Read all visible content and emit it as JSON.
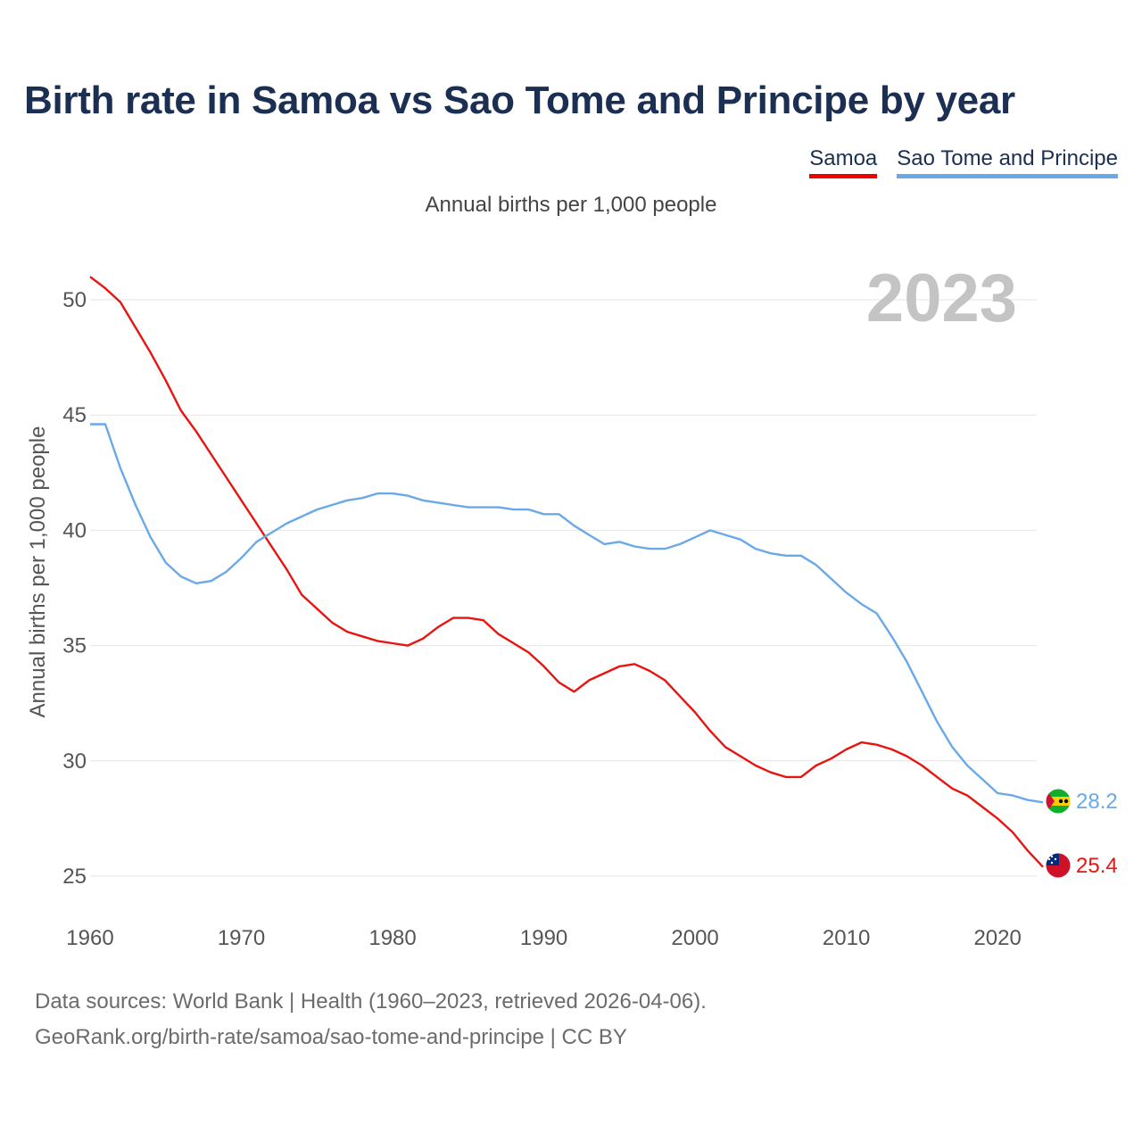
{
  "title": "Birth rate in Samoa vs Sao Tome and Principe by year",
  "legend": [
    {
      "label": "Samoa",
      "color": "#e8140f"
    },
    {
      "label": "Sao Tome and Principe",
      "color": "#6aa9e8"
    }
  ],
  "subtitle": "Annual births per 1,000 people",
  "footer": {
    "line1": "Data sources: World Bank | Health (1960–2023, retrieved 2026-04-06).",
    "line2": "GeoRank.org/birth-rate/samoa/sao-tome-and-principe | CC BY"
  },
  "chart_data": {
    "type": "line",
    "title": "Birth rate in Samoa vs Sao Tome and Principe by year",
    "ylabel": "Annual births per 1,000 people",
    "xlabel": "",
    "xlim": [
      1960,
      2023
    ],
    "ylim": [
      23.5,
      52
    ],
    "x_ticks": [
      1960,
      1970,
      1980,
      1990,
      2000,
      2010,
      2020
    ],
    "y_ticks": [
      25,
      30,
      35,
      40,
      45,
      50
    ],
    "grid": true,
    "year_watermark": "2023",
    "x": [
      1960,
      1961,
      1962,
      1963,
      1964,
      1965,
      1966,
      1967,
      1968,
      1969,
      1970,
      1971,
      1972,
      1973,
      1974,
      1975,
      1976,
      1977,
      1978,
      1979,
      1980,
      1981,
      1982,
      1983,
      1984,
      1985,
      1986,
      1987,
      1988,
      1989,
      1990,
      1991,
      1992,
      1993,
      1994,
      1995,
      1996,
      1997,
      1998,
      1999,
      2000,
      2001,
      2002,
      2003,
      2004,
      2005,
      2006,
      2007,
      2008,
      2009,
      2010,
      2011,
      2012,
      2013,
      2014,
      2015,
      2016,
      2017,
      2018,
      2019,
      2020,
      2021,
      2022,
      2023
    ],
    "series": [
      {
        "name": "Samoa",
        "color": "#e8140f",
        "end_label": "25.4",
        "values": [
          51.0,
          50.5,
          49.9,
          48.8,
          47.7,
          46.5,
          45.2,
          44.3,
          43.3,
          42.3,
          41.3,
          40.3,
          39.3,
          38.3,
          37.2,
          36.6,
          36.0,
          35.6,
          35.4,
          35.2,
          35.1,
          35.0,
          35.3,
          35.8,
          36.2,
          36.2,
          36.1,
          35.5,
          35.1,
          34.7,
          34.1,
          33.4,
          33.0,
          33.5,
          33.8,
          34.1,
          34.2,
          33.9,
          33.5,
          32.8,
          32.1,
          31.3,
          30.6,
          30.2,
          29.8,
          29.5,
          29.3,
          29.3,
          29.8,
          30.1,
          30.5,
          30.8,
          30.7,
          30.5,
          30.2,
          29.8,
          29.3,
          28.8,
          28.5,
          28.0,
          27.5,
          26.9,
          26.1,
          25.4
        ]
      },
      {
        "name": "Sao Tome and Principe",
        "color": "#6aa9e8",
        "end_label": "28.2",
        "values": [
          44.6,
          44.6,
          42.7,
          41.1,
          39.7,
          38.6,
          38.0,
          37.7,
          37.8,
          38.2,
          38.8,
          39.5,
          39.9,
          40.3,
          40.6,
          40.9,
          41.1,
          41.3,
          41.4,
          41.6,
          41.6,
          41.5,
          41.3,
          41.2,
          41.1,
          41.0,
          41.0,
          41.0,
          40.9,
          40.9,
          40.7,
          40.7,
          40.2,
          39.8,
          39.4,
          39.5,
          39.3,
          39.2,
          39.2,
          39.4,
          39.7,
          40.0,
          39.8,
          39.6,
          39.2,
          39.0,
          38.9,
          38.9,
          38.5,
          37.9,
          37.3,
          36.8,
          36.4,
          35.4,
          34.3,
          33.0,
          31.7,
          30.6,
          29.8,
          29.2,
          28.6,
          28.5,
          28.3,
          28.2
        ]
      }
    ]
  },
  "flags": {
    "samoa": "samoa-flag-icon",
    "stp": "sao-tome-flag-icon"
  }
}
